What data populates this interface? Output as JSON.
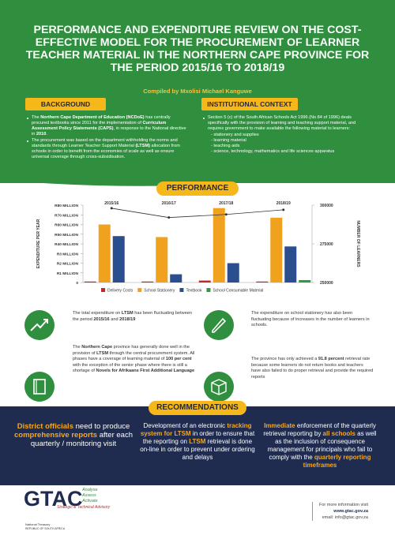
{
  "header": {
    "title": "PERFORMANCE AND EXPENDITURE REVIEW ON THE COST-EFFECTIVE MODEL FOR THE PROCUREMENT OF LEARNER TEACHER MATERIAL IN THE NORTHERN CAPE PROVINCE FOR THE PERIOD 2015/16 TO 2018/19",
    "subtitle": "Compiled by Mxolisi Michael Kanguwe"
  },
  "background": {
    "heading": "BACKGROUND",
    "items": [
      [
        {
          "text": "The "
        },
        {
          "text": "Northern Cape Department of Education (NCDoE)",
          "strong": true
        },
        {
          "text": " has centrally procured textbooks since 2011 for the implementation of "
        },
        {
          "text": "Curriculum Assessment Policy Statements (CAPS)",
          "strong": true
        },
        {
          "text": ", in response to the National directive in "
        },
        {
          "text": "2010",
          "strong": true
        },
        {
          "text": "."
        }
      ],
      [
        {
          "text": "The procurement was based on the department withholding the norms and standards through Learner Teacher Support Material "
        },
        {
          "text": "(LTSM)",
          "strong": true
        },
        {
          "text": " allocation from schools in order to benefit from the economies of scale as well as ensure universal coverage through cross-subsidisation."
        }
      ]
    ]
  },
  "context": {
    "heading": "INSTITUTIONAL CONTEXT",
    "intro": "Section 5 (c) of the South African Schools Act 1996 (No 84 of 1996) deals specifically with the provision of learning and teaching support material, and requires government to make available the following material to learners:",
    "list": [
      "- stationery and supplies",
      "- learning material",
      "- teaching aids",
      "- science, technology, mathematics and life sciences apparatus"
    ]
  },
  "performance": {
    "heading": "PERFORMANCE"
  },
  "chart_data": {
    "type": "bar",
    "y_label": "EXPENDITURE PER YEAR",
    "y2_label": "NUMBER OF LEARNERS",
    "categories": [
      "2015/16",
      "2016/17",
      "2017/18",
      "2018/19"
    ],
    "ylim": [
      0,
      80000000
    ],
    "yticks": [
      0,
      {
        "value": 1000000,
        "label": "R1 MILLION"
      },
      {
        "value": 2000000,
        "label": "R2 MILLION"
      },
      {
        "value": 3000000,
        "label": "R3 MILLION"
      },
      {
        "value": 40000000,
        "label": "R40 MILLION"
      },
      {
        "value": 50000000,
        "label": "R50 MILLION"
      },
      {
        "value": 60000000,
        "label": "R60 MILLION"
      },
      {
        "value": 70000000,
        "label": "R70 MILLION"
      },
      {
        "value": 80000000,
        "label": "R80 MILLION"
      }
    ],
    "y2lim": [
      250000,
      300000
    ],
    "y2ticks": [
      250000,
      275000,
      300000
    ],
    "series": [
      {
        "name": "Delivery Costs",
        "color": "#c0282d",
        "values": [
          100000,
          100000,
          200000,
          100000
        ]
      },
      {
        "name": "School Stationery",
        "color": "#f0a21e",
        "values": [
          60000000,
          47000000,
          77000000,
          67000000
        ]
      },
      {
        "name": "Textbook",
        "color": "#2b4f8e",
        "values": [
          48000000,
          850000,
          2000000,
          30000000
        ]
      },
      {
        "name": "School Consumable Material",
        "color": "#2e9a47",
        "values": [
          0,
          0,
          0,
          250000
        ]
      },
      {
        "type": "line",
        "axis": "y2",
        "color": "#333333",
        "values": [
          298000,
          292000,
          294000,
          297000
        ]
      }
    ]
  },
  "findings": [
    [
      {
        "text": "The total expenditure on "
      },
      {
        "text": "LTSM",
        "strong": true
      },
      {
        "text": " has been fluctuating between the period "
      },
      {
        "text": "2015/16",
        "strong": true
      },
      {
        "text": " and "
      },
      {
        "text": "2018/19",
        "strong": true
      }
    ],
    [
      {
        "text": "The expenditure on school stationery has also been fluctuating because of increases in the number of learners in schools."
      }
    ],
    [
      {
        "text": "The "
      },
      {
        "text": "Northern Cape",
        "strong": true
      },
      {
        "text": " province has generally done well in the provision of "
      },
      {
        "text": "LTSM",
        "strong": true
      },
      {
        "text": " through the central procurement system. All phases have a coverage of learning material of "
      },
      {
        "text": "100 per cent",
        "strong": true
      },
      {
        "text": " with the exception of the senior phase where there is still a shortage of "
      },
      {
        "text": "Novels for Afrikaans First Additional Language",
        "strong": true
      }
    ],
    [
      {
        "text": "The province has only achieved a "
      },
      {
        "text": "91.8 percent",
        "strong": true
      },
      {
        "text": " retrieval rate because some learners do not return books and teachers have also failed to do proper retrieval and provide the required reports"
      }
    ]
  ],
  "recommendations": {
    "heading": "RECOMMENDATIONS",
    "items": [
      [
        {
          "text": "District officials",
          "strong": true
        },
        {
          "text": " need to produce "
        },
        {
          "text": "comprehensive reports",
          "strong": true
        },
        {
          "text": " after each quarterly / monitoring visit"
        }
      ],
      [
        {
          "text": "Development of an electronic "
        },
        {
          "text": "tracking system for LTSM",
          "strong": true
        },
        {
          "text": " in order to ensure that the reporting on "
        },
        {
          "text": "LTSM",
          "strong": true
        },
        {
          "text": " retrieval is done on-line in order to prevent under ordering and delays"
        }
      ],
      [
        {
          "text": "Immediate",
          "strong": true
        },
        {
          "text": " enforcement of the quarterly retrieval reporting by "
        },
        {
          "text": "all schools",
          "strong": true
        },
        {
          "text": " as well as the inclusion of consequence management for principals who fail to comply with the "
        },
        {
          "text": "quarterly reporting timeframes",
          "strong": true
        }
      ]
    ]
  },
  "footer": {
    "logo": "GTAC",
    "tagline": [
      "Analyse",
      "Assess",
      "Activate"
    ],
    "advisory": "Strategic & Technical Advisory",
    "treasury": "National Treasury",
    "republic": "REPUBLIC OF SOUTH AFRICA",
    "info": "For more information visit",
    "website": "www.gtac.gov.za",
    "email": "email: info@gtac.gov.za"
  }
}
